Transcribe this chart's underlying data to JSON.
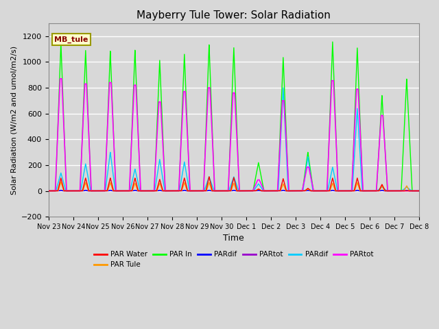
{
  "title": "Mayberry Tule Tower: Solar Radiation",
  "xlabel": "Time",
  "ylabel": "Solar Radiation (W/m2 and umol/m2/s)",
  "ylim": [
    -200,
    1300
  ],
  "yticks": [
    -200,
    0,
    200,
    400,
    600,
    800,
    1000,
    1200
  ],
  "background_color": "#d8d8d8",
  "grid_color": "#ffffff",
  "label_box_text": "MB_tule",
  "legend_entries": [
    {
      "label": "PAR Water",
      "color": "#ff0000"
    },
    {
      "label": "PAR Tule",
      "color": "#ff9900"
    },
    {
      "label": "PAR In",
      "color": "#00ff00"
    },
    {
      "label": "PARdif",
      "color": "#0000ff"
    },
    {
      "label": "PARtot",
      "color": "#9900cc"
    },
    {
      "label": "PARdif",
      "color": "#00ccff"
    },
    {
      "label": "PARtot",
      "color": "#ff00ff"
    }
  ],
  "x_tick_labels": [
    "Nov 23",
    "Nov 24",
    "Nov 25",
    "Nov 26",
    "Nov 27",
    "Nov 28",
    "Nov 29",
    "Nov 30",
    "Dec 1",
    "Dec 2",
    "Dec 3",
    "Dec 4",
    "Dec 5",
    "Dec 6",
    "Dec 7",
    "Dec 8"
  ],
  "num_days": 16,
  "peaks": [
    {
      "day": 0.5,
      "green": 1150,
      "magenta": 870,
      "red": 100,
      "orange": 70,
      "blue": 5,
      "purple": 5,
      "cyan": 140
    },
    {
      "day": 1.5,
      "green": 1090,
      "magenta": 830,
      "red": 100,
      "orange": 65,
      "blue": 5,
      "purple": 5,
      "cyan": 210
    },
    {
      "day": 2.5,
      "green": 1085,
      "magenta": 840,
      "red": 100,
      "orange": 65,
      "blue": 5,
      "purple": 5,
      "cyan": 300
    },
    {
      "day": 3.5,
      "green": 1095,
      "magenta": 820,
      "red": 100,
      "orange": 60,
      "blue": 5,
      "purple": 5,
      "cyan": 170
    },
    {
      "day": 4.5,
      "green": 1015,
      "magenta": 690,
      "red": 90,
      "orange": 60,
      "blue": 5,
      "purple": 5,
      "cyan": 245
    },
    {
      "day": 5.5,
      "green": 1060,
      "magenta": 770,
      "red": 100,
      "orange": 65,
      "blue": 5,
      "purple": 5,
      "cyan": 225
    },
    {
      "day": 6.5,
      "green": 1135,
      "magenta": 800,
      "red": 110,
      "orange": 65,
      "blue": 5,
      "purple": 5,
      "cyan": 110
    },
    {
      "day": 7.5,
      "green": 1115,
      "magenta": 760,
      "red": 105,
      "orange": 60,
      "blue": 5,
      "purple": 5,
      "cyan": 110
    },
    {
      "day": 8.5,
      "green": 220,
      "magenta": 85,
      "red": 15,
      "orange": 15,
      "blue": 3,
      "purple": 3,
      "cyan": 55
    },
    {
      "day": 9.5,
      "green": 1035,
      "magenta": 700,
      "red": 95,
      "orange": 55,
      "blue": 5,
      "purple": 5,
      "cyan": 800
    },
    {
      "day": 10.5,
      "green": 300,
      "magenta": 185,
      "red": 20,
      "orange": 15,
      "blue": 3,
      "purple": 3,
      "cyan": 265
    },
    {
      "day": 11.5,
      "green": 1160,
      "magenta": 855,
      "red": 100,
      "orange": 60,
      "blue": 5,
      "purple": 5,
      "cyan": 185
    },
    {
      "day": 12.5,
      "green": 1110,
      "magenta": 790,
      "red": 100,
      "orange": 65,
      "blue": 5,
      "purple": 5,
      "cyan": 640
    },
    {
      "day": 13.5,
      "green": 740,
      "magenta": 585,
      "red": 50,
      "orange": 40,
      "blue": 5,
      "purple": 5,
      "cyan": 30
    },
    {
      "day": 14.5,
      "green": 870,
      "magenta": 0,
      "red": 0,
      "orange": 40,
      "blue": 5,
      "purple": 5,
      "cyan": 30
    }
  ]
}
